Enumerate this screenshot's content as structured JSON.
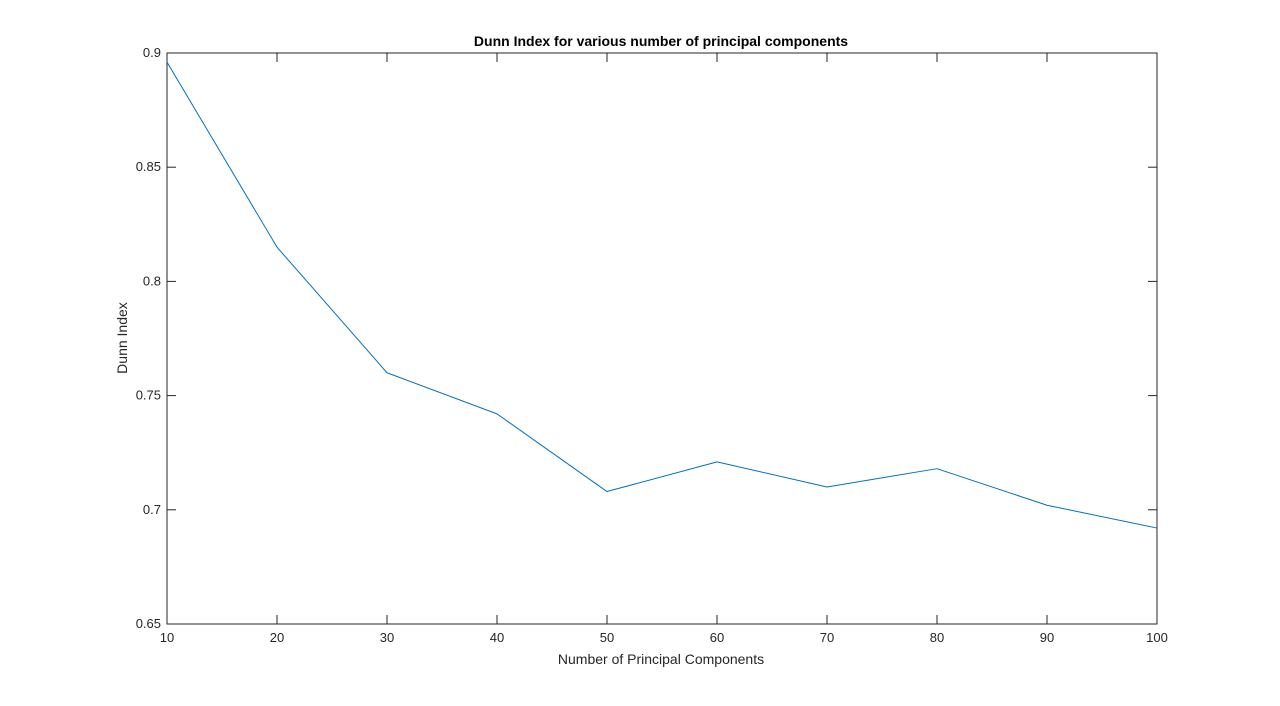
{
  "chart_data": {
    "type": "line",
    "title": "Dunn Index for various number of principal components",
    "xlabel": "Number of Principal Components",
    "ylabel": "Dunn Index",
    "xlim": [
      10,
      100
    ],
    "ylim": [
      0.65,
      0.9
    ],
    "xticks": [
      10,
      20,
      30,
      40,
      50,
      60,
      70,
      80,
      90,
      100
    ],
    "yticks": [
      0.65,
      0.7,
      0.75,
      0.8,
      0.85,
      0.9
    ],
    "xtick_labels": [
      "10",
      "20",
      "30",
      "40",
      "50",
      "60",
      "70",
      "80",
      "90",
      "100"
    ],
    "ytick_labels": [
      "0.65",
      "0.7",
      "0.75",
      "0.8",
      "0.85",
      "0.9"
    ],
    "grid": false,
    "legend": "none",
    "series": [
      {
        "color": "#0072BD",
        "x": [
          10,
          20,
          30,
          40,
          50,
          60,
          70,
          80,
          90,
          100
        ],
        "y": [
          0.896,
          0.815,
          0.76,
          0.742,
          0.708,
          0.721,
          0.71,
          0.718,
          0.702,
          0.692
        ]
      }
    ]
  }
}
